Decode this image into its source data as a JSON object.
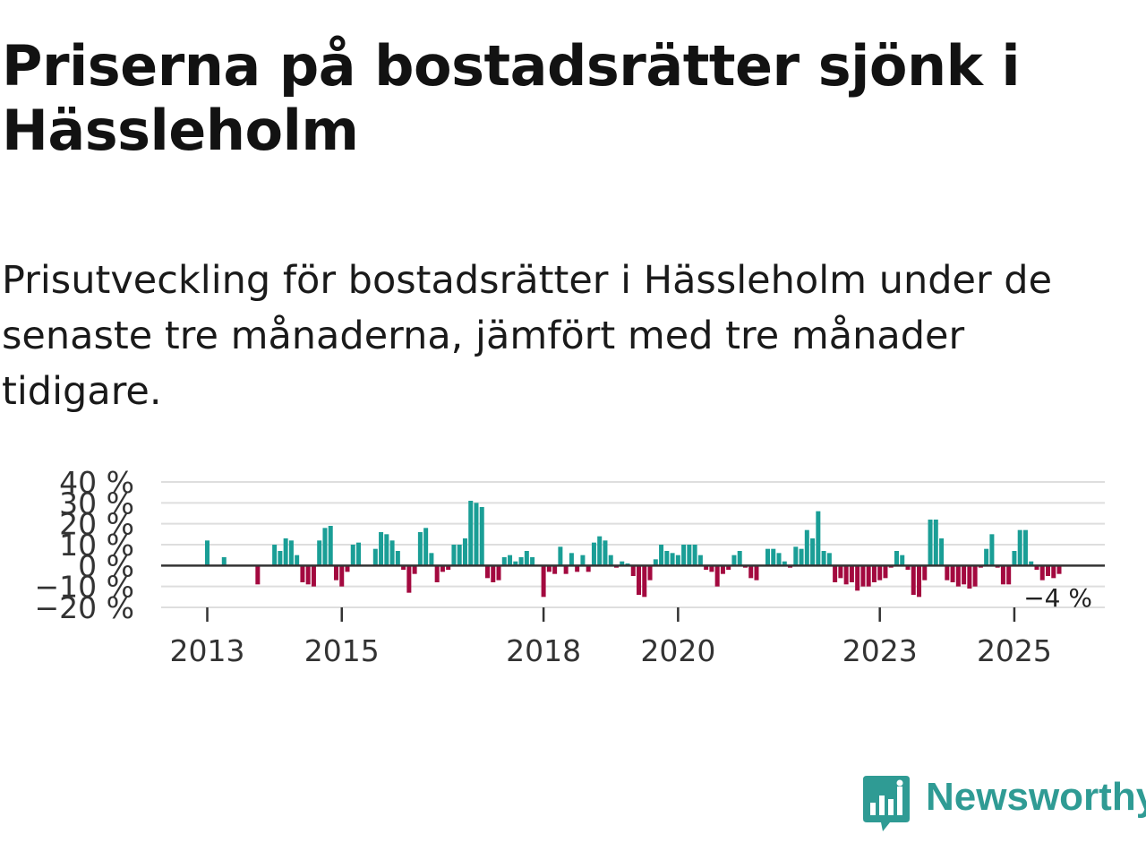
{
  "header": {
    "title": "Priserna på bostadsrätter sjönk i Hässleholm",
    "subtitle": "Prisutveckling för bostadsrätter i Hässleholm under de senaste tre månaderna, jämfört med tre månader tidigare."
  },
  "brand": {
    "name": "Newsworthy",
    "color": "#2f9b94",
    "icon": "newsworthy-logo-icon"
  },
  "chart_data": {
    "type": "bar",
    "title": "",
    "xlabel": "",
    "ylabel": "",
    "ylim": [
      -20,
      40
    ],
    "yticks": [
      {
        "value": 40,
        "label": "40 %"
      },
      {
        "value": 30,
        "label": "30 %"
      },
      {
        "value": 20,
        "label": "20 %"
      },
      {
        "value": 10,
        "label": "10 %"
      },
      {
        "value": 0,
        "label": "0 %"
      },
      {
        "value": -10,
        "label": "−10 %"
      },
      {
        "value": -20,
        "label": "−20 %"
      }
    ],
    "xticks": [
      {
        "label": "2013",
        "index": 0
      },
      {
        "label": "2015",
        "index": 24
      },
      {
        "label": "2018",
        "index": 60
      },
      {
        "label": "2020",
        "index": 84
      },
      {
        "label": "2023",
        "index": 120
      },
      {
        "label": "2025",
        "index": 144
      }
    ],
    "positive_color": "#1a9e96",
    "negative_color": "#a3093f",
    "grid": true,
    "last_label": "−4 %",
    "series": [
      {
        "name": "Prisutveckling",
        "values": [
          12,
          0,
          0,
          4,
          0,
          0,
          0,
          0,
          0,
          -9,
          0,
          0,
          10,
          7,
          13,
          12,
          5,
          -8,
          -9,
          -10,
          12,
          18,
          19,
          -7,
          -10,
          -3,
          10,
          11,
          0,
          0,
          8,
          16,
          15,
          12,
          7,
          -2,
          -13,
          -4,
          16,
          18,
          6,
          -8,
          -3,
          -2,
          10,
          10,
          13,
          31,
          30,
          28,
          -6,
          -8,
          -7,
          4,
          5,
          2,
          4,
          7,
          4,
          0,
          -15,
          -3,
          -4,
          9,
          -4,
          6,
          -3,
          5,
          -3,
          11,
          14,
          12,
          5,
          -1,
          2,
          1,
          -5,
          -14,
          -15,
          -7,
          3,
          10,
          7,
          6,
          5,
          10,
          10,
          10,
          5,
          -2,
          -3,
          -10,
          -4,
          -2,
          5,
          7,
          -1,
          -6,
          -7,
          0,
          8,
          8,
          6,
          2,
          -1,
          9,
          8,
          17,
          13,
          26,
          7,
          6,
          -8,
          -6,
          -9,
          -8,
          -12,
          -10,
          -10,
          -8,
          -7,
          -6,
          -1,
          7,
          5,
          -2,
          -14,
          -15,
          -7,
          22,
          22,
          13,
          -7,
          -8,
          -10,
          -9,
          -11,
          -10,
          -1,
          8,
          15,
          -1,
          -9,
          -9,
          7,
          17,
          17,
          2,
          -2,
          -7,
          -5,
          -6,
          -4
        ]
      }
    ]
  }
}
